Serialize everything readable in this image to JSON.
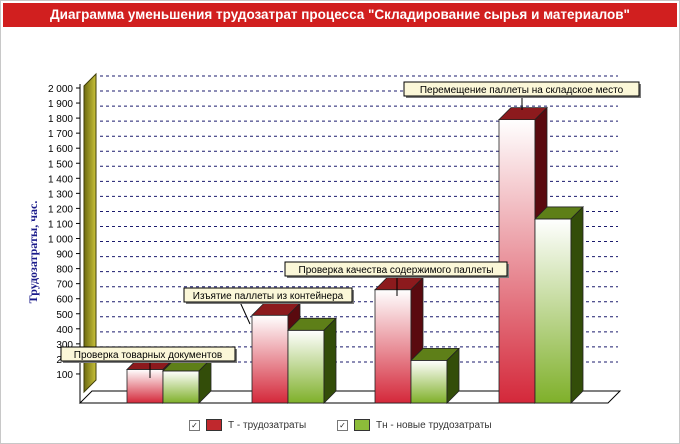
{
  "title": "Диаграмма уменьшения трудозатрат процесса \"Складирование сырья и материалов\"",
  "chart_data": {
    "type": "bar",
    "ylabel": "Трудозатраты, час.",
    "ylim": [
      0,
      2000
    ],
    "ytick_step": 100,
    "ytick_labels": [
      "100",
      "200",
      "300",
      "400",
      "500",
      "600",
      "700",
      "800",
      "900",
      "1 000",
      "1 100",
      "1 200",
      "1 300",
      "1 400",
      "1 500",
      "1 600",
      "1 700",
      "1 800",
      "1 900",
      "2 000"
    ],
    "grid": true,
    "legend_position": "bottom",
    "annotations": [
      "Проверка товарных документов",
      "Изъятие паллеты из контейнера",
      "Проверка качества содержимого паллеты",
      "Перемещение паллеты на складское место"
    ],
    "series": [
      {
        "name": "Т - трудозатраты",
        "color": "#c8102e",
        "values": [
          130,
          490,
          660,
          1790
        ]
      },
      {
        "name": "Тн - новые трудозатраты",
        "color": "#7fb020",
        "values": [
          120,
          390,
          190,
          1130
        ]
      }
    ]
  },
  "legend": {
    "check_mark": "✓",
    "items": [
      {
        "label": "Т - трудозатраты",
        "color": "#c0282d"
      },
      {
        "label": "Тн - новые трудозатраты",
        "color": "#8cbc3a"
      }
    ]
  }
}
